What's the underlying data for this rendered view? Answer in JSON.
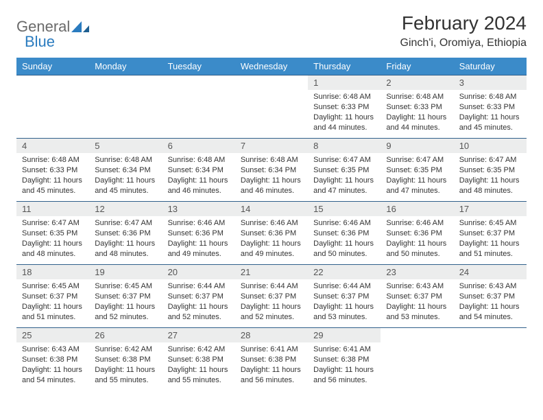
{
  "brand": {
    "part1": "General",
    "part2": "Blue",
    "accent": "#2a7bbf",
    "muted": "#6a6a6a"
  },
  "title": "February 2024",
  "location": "Ginch'i, Oromiya, Ethiopia",
  "header_bg": "#3b8bc9",
  "day_bg": "#eceded",
  "rule_color": "#2f5f8a",
  "columns": [
    "Sunday",
    "Monday",
    "Tuesday",
    "Wednesday",
    "Thursday",
    "Friday",
    "Saturday"
  ],
  "first_weekday_index": 4,
  "days": [
    {
      "n": 1,
      "sunrise": "6:48 AM",
      "sunset": "6:33 PM",
      "daylight": "11 hours and 44 minutes."
    },
    {
      "n": 2,
      "sunrise": "6:48 AM",
      "sunset": "6:33 PM",
      "daylight": "11 hours and 44 minutes."
    },
    {
      "n": 3,
      "sunrise": "6:48 AM",
      "sunset": "6:33 PM",
      "daylight": "11 hours and 45 minutes."
    },
    {
      "n": 4,
      "sunrise": "6:48 AM",
      "sunset": "6:33 PM",
      "daylight": "11 hours and 45 minutes."
    },
    {
      "n": 5,
      "sunrise": "6:48 AM",
      "sunset": "6:34 PM",
      "daylight": "11 hours and 45 minutes."
    },
    {
      "n": 6,
      "sunrise": "6:48 AM",
      "sunset": "6:34 PM",
      "daylight": "11 hours and 46 minutes."
    },
    {
      "n": 7,
      "sunrise": "6:48 AM",
      "sunset": "6:34 PM",
      "daylight": "11 hours and 46 minutes."
    },
    {
      "n": 8,
      "sunrise": "6:47 AM",
      "sunset": "6:35 PM",
      "daylight": "11 hours and 47 minutes."
    },
    {
      "n": 9,
      "sunrise": "6:47 AM",
      "sunset": "6:35 PM",
      "daylight": "11 hours and 47 minutes."
    },
    {
      "n": 10,
      "sunrise": "6:47 AM",
      "sunset": "6:35 PM",
      "daylight": "11 hours and 48 minutes."
    },
    {
      "n": 11,
      "sunrise": "6:47 AM",
      "sunset": "6:35 PM",
      "daylight": "11 hours and 48 minutes."
    },
    {
      "n": 12,
      "sunrise": "6:47 AM",
      "sunset": "6:36 PM",
      "daylight": "11 hours and 48 minutes."
    },
    {
      "n": 13,
      "sunrise": "6:46 AM",
      "sunset": "6:36 PM",
      "daylight": "11 hours and 49 minutes."
    },
    {
      "n": 14,
      "sunrise": "6:46 AM",
      "sunset": "6:36 PM",
      "daylight": "11 hours and 49 minutes."
    },
    {
      "n": 15,
      "sunrise": "6:46 AM",
      "sunset": "6:36 PM",
      "daylight": "11 hours and 50 minutes."
    },
    {
      "n": 16,
      "sunrise": "6:46 AM",
      "sunset": "6:36 PM",
      "daylight": "11 hours and 50 minutes."
    },
    {
      "n": 17,
      "sunrise": "6:45 AM",
      "sunset": "6:37 PM",
      "daylight": "11 hours and 51 minutes."
    },
    {
      "n": 18,
      "sunrise": "6:45 AM",
      "sunset": "6:37 PM",
      "daylight": "11 hours and 51 minutes."
    },
    {
      "n": 19,
      "sunrise": "6:45 AM",
      "sunset": "6:37 PM",
      "daylight": "11 hours and 52 minutes."
    },
    {
      "n": 20,
      "sunrise": "6:44 AM",
      "sunset": "6:37 PM",
      "daylight": "11 hours and 52 minutes."
    },
    {
      "n": 21,
      "sunrise": "6:44 AM",
      "sunset": "6:37 PM",
      "daylight": "11 hours and 52 minutes."
    },
    {
      "n": 22,
      "sunrise": "6:44 AM",
      "sunset": "6:37 PM",
      "daylight": "11 hours and 53 minutes."
    },
    {
      "n": 23,
      "sunrise": "6:43 AM",
      "sunset": "6:37 PM",
      "daylight": "11 hours and 53 minutes."
    },
    {
      "n": 24,
      "sunrise": "6:43 AM",
      "sunset": "6:37 PM",
      "daylight": "11 hours and 54 minutes."
    },
    {
      "n": 25,
      "sunrise": "6:43 AM",
      "sunset": "6:38 PM",
      "daylight": "11 hours and 54 minutes."
    },
    {
      "n": 26,
      "sunrise": "6:42 AM",
      "sunset": "6:38 PM",
      "daylight": "11 hours and 55 minutes."
    },
    {
      "n": 27,
      "sunrise": "6:42 AM",
      "sunset": "6:38 PM",
      "daylight": "11 hours and 55 minutes."
    },
    {
      "n": 28,
      "sunrise": "6:41 AM",
      "sunset": "6:38 PM",
      "daylight": "11 hours and 56 minutes."
    },
    {
      "n": 29,
      "sunrise": "6:41 AM",
      "sunset": "6:38 PM",
      "daylight": "11 hours and 56 minutes."
    }
  ],
  "labels": {
    "sunrise": "Sunrise:",
    "sunset": "Sunset:",
    "daylight": "Daylight:"
  }
}
